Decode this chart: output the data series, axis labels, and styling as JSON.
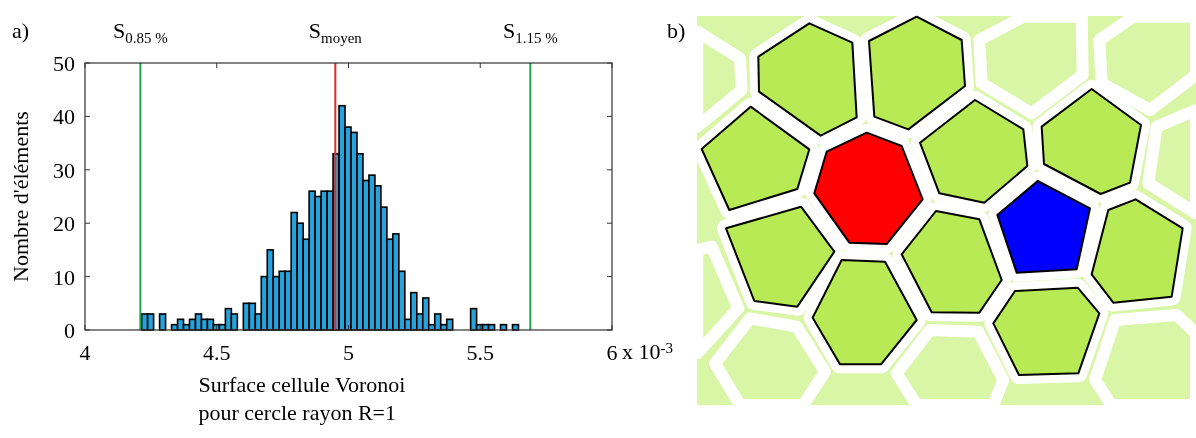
{
  "chart_data": {
    "type": "histogram",
    "bins": [
      4.215,
      4.2377,
      4.2604,
      4.2831,
      4.3058,
      4.3285,
      4.3512,
      4.3739,
      4.3966,
      4.4193,
      4.442,
      4.4647,
      4.4874,
      4.5101,
      4.5328,
      4.5555,
      4.5782,
      4.6009,
      4.6236,
      4.6463,
      4.669,
      4.6917,
      4.7144,
      4.7371,
      4.7598,
      4.7825,
      4.8052,
      4.8279,
      4.8506,
      4.8733,
      4.896,
      4.9187,
      4.9414,
      4.9641,
      4.9868,
      5.0095,
      5.0322,
      5.0549,
      5.0776,
      5.1003,
      5.123,
      5.1457,
      5.1684,
      5.1911,
      5.2138,
      5.2365,
      5.2592,
      5.2819,
      5.3046,
      5.3273,
      5.35,
      5.3727,
      5.3954,
      5.4181,
      5.4408,
      5.4635,
      5.4862,
      5.5089,
      5.5316,
      5.5543,
      5.577,
      5.5997,
      5.6224,
      5.6451
    ],
    "values": [
      3,
      3,
      0,
      3,
      0,
      1,
      2,
      1,
      2,
      3,
      2,
      2,
      1,
      1,
      4,
      3,
      0,
      5,
      5,
      3,
      10,
      15,
      10,
      11,
      11,
      22,
      20,
      17,
      26,
      25,
      26,
      26,
      33,
      42,
      38,
      37,
      33,
      28,
      29,
      27,
      23,
      17,
      18,
      11,
      2,
      7,
      3,
      6,
      1,
      3,
      1,
      2,
      0,
      0,
      0,
      4,
      1,
      1,
      1,
      0,
      1,
      0,
      1
    ],
    "color": "#26a3dc",
    "xlim": [
      4,
      6
    ],
    "xticks": [
      4,
      4.5,
      5,
      5.5,
      6
    ],
    "ylim": [
      0,
      50
    ],
    "yticks": [
      0,
      10,
      20,
      30,
      40,
      50
    ],
    "xlabel": "Surface cellule Voronoi\npour cercle rayon R=1",
    "ylabel": "Nombre d'éléments",
    "ref_lines": [
      {
        "axis": "x",
        "value": 4.21,
        "label": "S$_{0.85 %}$",
        "color": "#1ea84c"
      },
      {
        "axis": "x",
        "value": 4.95,
        "label": "S$_{moyen}$",
        "color": "#e82828"
      },
      {
        "axis": "x",
        "value": 5.69,
        "label": "S$_{1.15 %}$",
        "color": "#1ea84c"
      }
    ],
    "annotations": [
      "a)",
      "b)",
      "x 10$^{-3}$"
    ]
  }
}
